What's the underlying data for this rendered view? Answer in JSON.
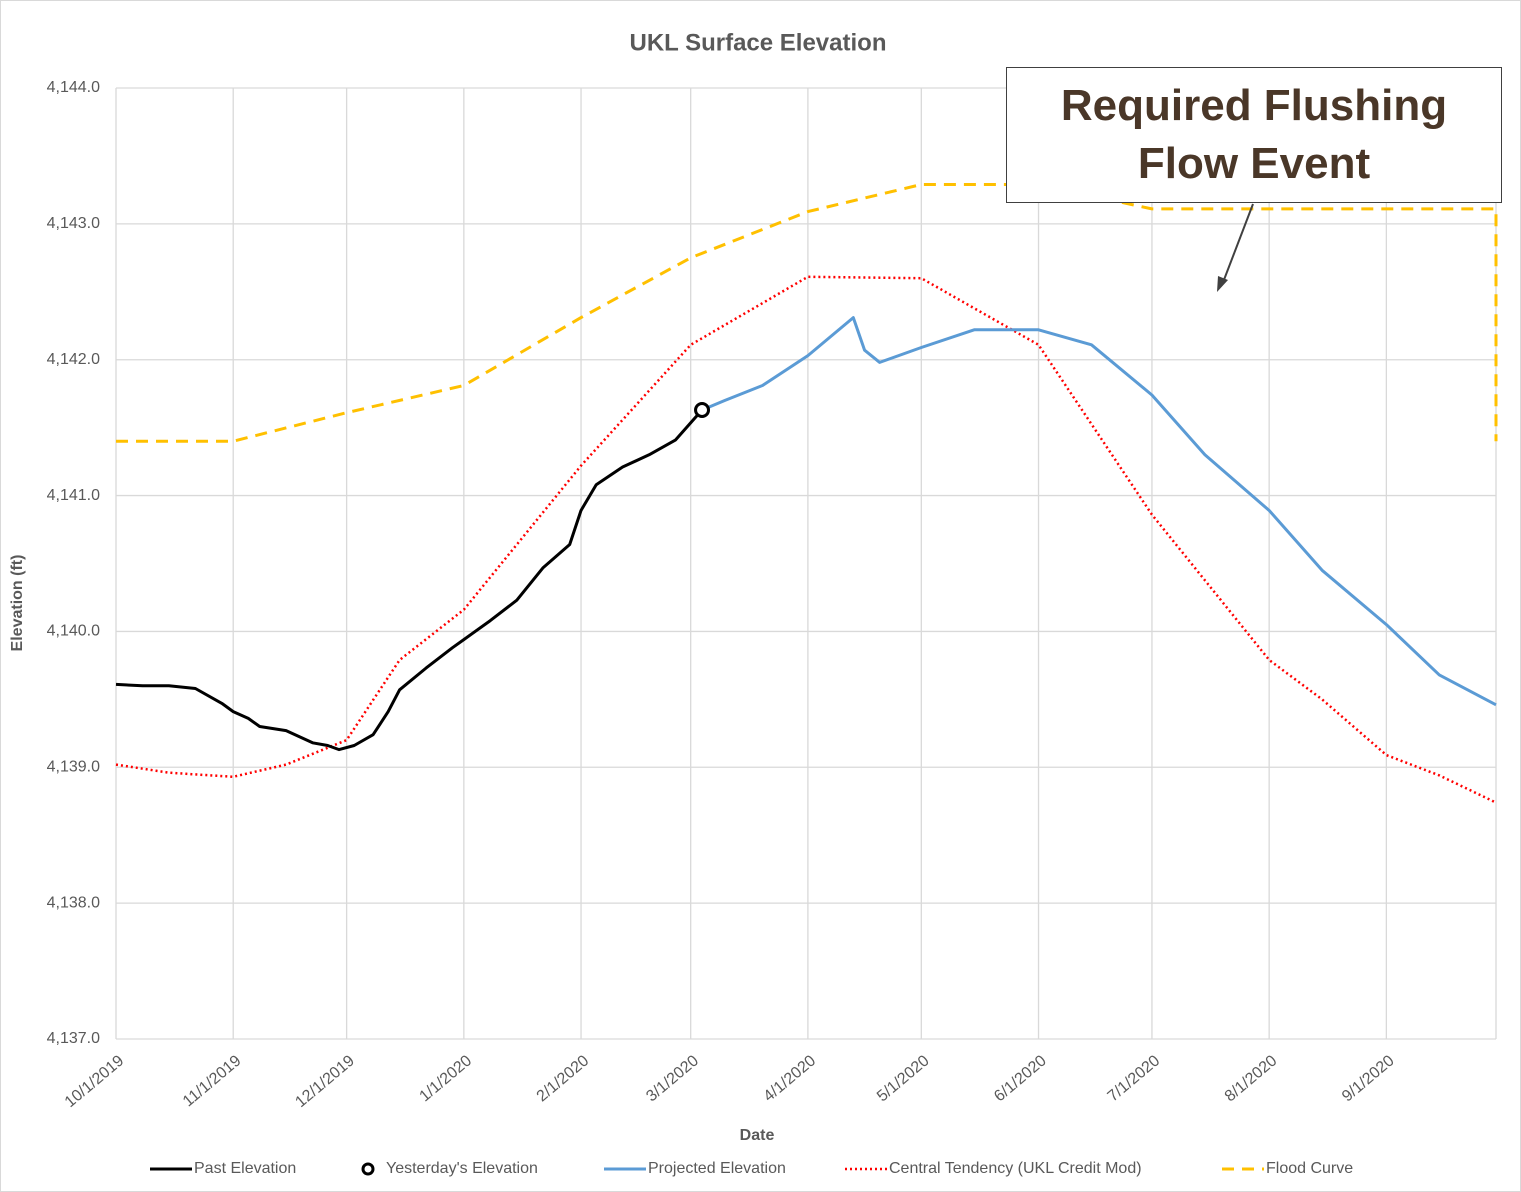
{
  "chart_data": {
    "type": "line",
    "title": "UKL Surface Elevation",
    "x_label": "Date",
    "y_label": "Elevation (ft)",
    "annotation": "Required Flushing Flow Event",
    "xlim": [
      "10/1/2019",
      "9/30/2020"
    ],
    "xticks": [
      "10/1/2019",
      "11/1/2019",
      "12/1/2019",
      "1/1/2020",
      "2/1/2020",
      "3/1/2020",
      "4/1/2020",
      "5/1/2020",
      "6/1/2020",
      "7/1/2020",
      "8/1/2020",
      "9/1/2020"
    ],
    "ylim": [
      4137,
      4144
    ],
    "yticks": [
      {
        "value": 4137,
        "label": "4,137.0"
      },
      {
        "value": 4138,
        "label": "4,138.0"
      },
      {
        "value": 4139,
        "label": "4,139.0"
      },
      {
        "value": 4140,
        "label": "4,140.0"
      },
      {
        "value": 4141,
        "label": "4,141.0"
      },
      {
        "value": 4142,
        "label": "4,142.0"
      },
      {
        "value": 4143,
        "label": "4,143.0"
      },
      {
        "value": 4144,
        "label": "4,144.0"
      }
    ],
    "grid": true,
    "legend": "bottom",
    "series": [
      {
        "name": "Past Elevation",
        "color": "#000000",
        "dash": "solid",
        "x": [
          "10/1/2019",
          "10/8/2019",
          "10/15/2019",
          "10/22/2019",
          "10/29/2019",
          "11/1/2019",
          "11/5/2019",
          "11/8/2019",
          "11/15/2019",
          "11/22/2019",
          "11/26/2019",
          "11/29/2019",
          "12/3/2019",
          "12/8/2019",
          "12/12/2019",
          "12/15/2019",
          "12/22/2019",
          "12/29/2019",
          "1/1/2020",
          "1/8/2020",
          "1/15/2020",
          "1/22/2020",
          "1/29/2020",
          "2/1/2020",
          "2/5/2020",
          "2/12/2020",
          "2/19/2020",
          "2/26/2020",
          "3/4/2020"
        ],
        "values": [
          4139.61,
          4139.6,
          4139.6,
          4139.58,
          4139.47,
          4139.41,
          4139.36,
          4139.3,
          4139.27,
          4139.18,
          4139.16,
          4139.13,
          4139.16,
          4139.24,
          4139.41,
          4139.57,
          4139.73,
          4139.88,
          4139.94,
          4140.08,
          4140.23,
          4140.47,
          4140.64,
          4140.89,
          4141.08,
          4141.21,
          4141.3,
          4141.41,
          4141.63
        ]
      },
      {
        "name": "Yesterday's Elevation",
        "color": "#000000",
        "marker": "circle",
        "x": [
          "3/4/2020"
        ],
        "values": [
          4141.63
        ]
      },
      {
        "name": "Projected Elevation",
        "color": "#5b9bd5",
        "dash": "solid",
        "x": [
          "3/4/2020",
          "3/10/2020",
          "3/20/2020",
          "4/1/2020",
          "4/13/2020",
          "4/16/2020",
          "4/20/2020",
          "5/1/2020",
          "5/15/2020",
          "6/1/2020",
          "6/15/2020",
          "7/1/2020",
          "7/15/2020",
          "8/1/2020",
          "8/15/2020",
          "9/1/2020",
          "9/15/2020",
          "9/30/2020"
        ],
        "values": [
          4141.63,
          4141.7,
          4141.81,
          4142.03,
          4142.31,
          4142.07,
          4141.98,
          4142.09,
          4142.22,
          4142.22,
          4142.11,
          4141.74,
          4141.3,
          4140.89,
          4140.45,
          4140.05,
          4139.68,
          4139.46
        ]
      },
      {
        "name": "Central Tendency (UKL Credit Mod)",
        "color": "#ff0000",
        "dash": "dotted",
        "x": [
          "10/1/2019",
          "10/15/2019",
          "11/1/2019",
          "11/15/2019",
          "12/1/2019",
          "12/15/2019",
          "1/1/2020",
          "2/1/2020",
          "3/1/2020",
          "4/1/2020",
          "5/1/2020",
          "6/1/2020",
          "7/1/2020",
          "8/1/2020",
          "8/15/2020",
          "9/1/2020",
          "9/15/2020",
          "9/30/2020"
        ],
        "values": [
          4139.02,
          4138.96,
          4138.93,
          4139.02,
          4139.2,
          4139.79,
          4140.16,
          4141.22,
          4142.11,
          4142.61,
          4142.6,
          4142.11,
          4140.86,
          4139.79,
          4139.5,
          4139.09,
          4138.94,
          4138.74
        ]
      },
      {
        "name": "Flood Curve",
        "color": "#ffc000",
        "dash": "dashed",
        "x": [
          "10/1/2019",
          "11/1/2019",
          "12/1/2019",
          "1/1/2020",
          "2/1/2020",
          "3/1/2020",
          "4/1/2020",
          "5/1/2020",
          "6/1/2020",
          "7/1/2020",
          "9/30/2020",
          "9/30/2020"
        ],
        "values": [
          4141.4,
          4141.4,
          4141.61,
          4141.81,
          4142.31,
          4142.75,
          4143.09,
          4143.29,
          4143.29,
          4143.11,
          4143.11,
          4141.4
        ]
      }
    ]
  }
}
